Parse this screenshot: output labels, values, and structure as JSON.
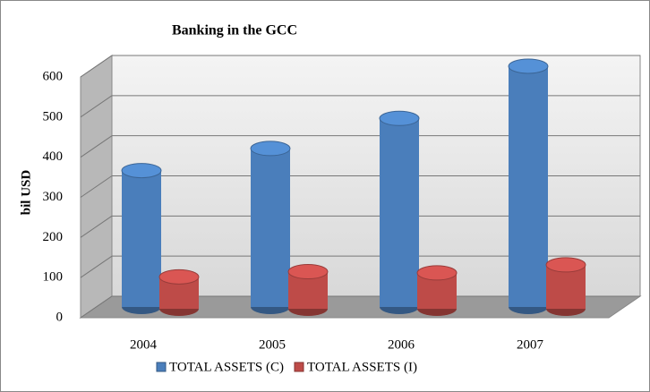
{
  "chart_data": {
    "type": "bar",
    "title": "Banking in the GCC",
    "y_label": "bil USD",
    "categories": [
      "2004",
      "2005",
      "2006",
      "2007"
    ],
    "series": [
      {
        "name": "TOTAL ASSETS (C)",
        "color": "#4a7ebb",
        "values": [
          340,
          395,
          470,
          600
        ]
      },
      {
        "name": "TOTAL ASSETS (I)",
        "color": "#be4b48",
        "values": [
          75,
          88,
          85,
          105
        ]
      }
    ],
    "ylim": [
      0,
      600
    ],
    "yticks": [
      0,
      100,
      200,
      300,
      400,
      500,
      600
    ],
    "grid": true,
    "legend": "bottom"
  }
}
